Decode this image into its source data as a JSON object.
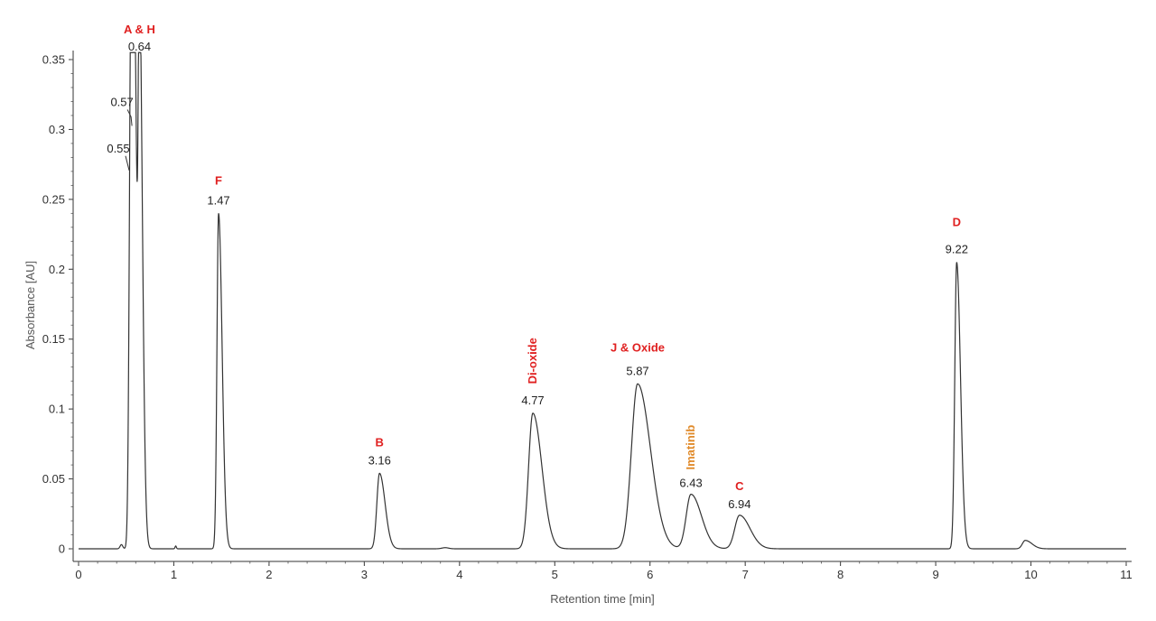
{
  "chart_data": {
    "type": "line",
    "xlabel": "Retention time [min]",
    "ylabel": "Absorbance [AU]",
    "xlim": [
      0,
      11
    ],
    "ylim": [
      0,
      0.35
    ],
    "xticks": [
      "0",
      "1",
      "2",
      "3",
      "4",
      "5",
      "6",
      "7",
      "8",
      "9",
      "10",
      "11"
    ],
    "yticks": [
      "0",
      "0.05",
      "0.1",
      "0.15",
      "0.2",
      "0.25",
      "0.3",
      "0.35"
    ],
    "grid": false,
    "legend": "none",
    "line_color": "#333333",
    "peaks": [
      {
        "rt": 0.55,
        "label": "0.55",
        "height": 0.272,
        "width": 0.018,
        "tail": 0.02
      },
      {
        "rt": 0.57,
        "label": "0.57",
        "height": 0.3,
        "width": 0.02,
        "tail": 0.02
      },
      {
        "rt": 0.64,
        "label": "0.64",
        "height": 0.352,
        "width": 0.012,
        "tail": 0.02
      },
      {
        "rt": 1.47,
        "label": "1.47",
        "height": 0.24,
        "width": 0.017,
        "tail": 0.02
      },
      {
        "rt": 3.16,
        "label": "3.16",
        "height": 0.054,
        "width": 0.028,
        "tail": 0.03
      },
      {
        "rt": 4.77,
        "label": "4.77",
        "height": 0.097,
        "width": 0.045,
        "tail": 0.05
      },
      {
        "rt": 5.87,
        "label": "5.87",
        "height": 0.118,
        "width": 0.065,
        "tail": 0.07
      },
      {
        "rt": 6.43,
        "label": "6.43",
        "height": 0.039,
        "width": 0.05,
        "tail": 0.06
      },
      {
        "rt": 6.94,
        "label": "6.94",
        "height": 0.024,
        "width": 0.05,
        "tail": 0.06
      },
      {
        "rt": 9.22,
        "label": "9.22",
        "height": 0.205,
        "width": 0.02,
        "tail": 0.02
      },
      {
        "rt": 9.94,
        "label": "",
        "height": 0.006,
        "width": 0.03,
        "tail": 0.04
      }
    ],
    "annotations": [
      {
        "text": "A & H",
        "peak_rt": 0.64,
        "color": "#e02020",
        "rotated": false
      },
      {
        "text": "F",
        "peak_rt": 1.47,
        "color": "#e02020",
        "rotated": false
      },
      {
        "text": "B",
        "peak_rt": 3.16,
        "color": "#e02020",
        "rotated": false
      },
      {
        "text": "Di-oxide",
        "peak_rt": 4.77,
        "color": "#e02020",
        "rotated": true
      },
      {
        "text": "J & Oxide",
        "peak_rt": 5.87,
        "color": "#e02020",
        "rotated": false
      },
      {
        "text": "Imatinib",
        "peak_rt": 6.43,
        "color": "#e08a2a",
        "rotated": true
      },
      {
        "text": "C",
        "peak_rt": 6.94,
        "color": "#e02020",
        "rotated": false
      },
      {
        "text": "D",
        "peak_rt": 9.22,
        "color": "#e02020",
        "rotated": false
      }
    ]
  }
}
